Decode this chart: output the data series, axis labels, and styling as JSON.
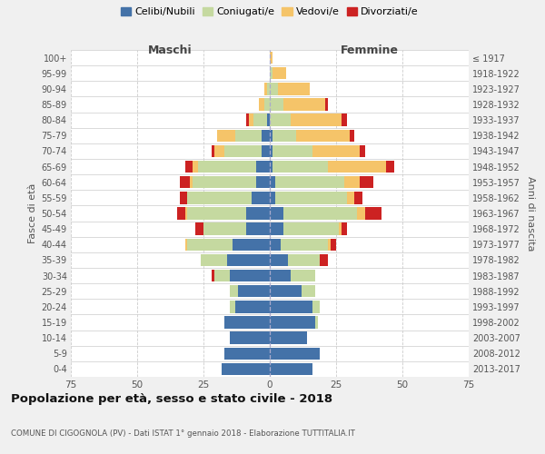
{
  "age_groups": [
    "0-4",
    "5-9",
    "10-14",
    "15-19",
    "20-24",
    "25-29",
    "30-34",
    "35-39",
    "40-44",
    "45-49",
    "50-54",
    "55-59",
    "60-64",
    "65-69",
    "70-74",
    "75-79",
    "80-84",
    "85-89",
    "90-94",
    "95-99",
    "100+"
  ],
  "birth_years": [
    "2013-2017",
    "2008-2012",
    "2003-2007",
    "1998-2002",
    "1993-1997",
    "1988-1992",
    "1983-1987",
    "1978-1982",
    "1973-1977",
    "1968-1972",
    "1963-1967",
    "1958-1962",
    "1953-1957",
    "1948-1952",
    "1943-1947",
    "1938-1942",
    "1933-1937",
    "1928-1932",
    "1923-1927",
    "1918-1922",
    "≤ 1917"
  ],
  "maschi": {
    "celibi": [
      18,
      17,
      15,
      17,
      13,
      12,
      15,
      16,
      14,
      9,
      9,
      7,
      5,
      5,
      3,
      3,
      1,
      0,
      0,
      0,
      0
    ],
    "coniugati": [
      0,
      0,
      0,
      0,
      2,
      3,
      6,
      10,
      17,
      16,
      22,
      24,
      24,
      22,
      14,
      10,
      5,
      2,
      1,
      0,
      0
    ],
    "vedovi": [
      0,
      0,
      0,
      0,
      0,
      0,
      0,
      0,
      1,
      0,
      1,
      0,
      1,
      2,
      4,
      7,
      2,
      2,
      1,
      0,
      0
    ],
    "divorziati": [
      0,
      0,
      0,
      0,
      0,
      0,
      1,
      0,
      0,
      3,
      3,
      3,
      4,
      3,
      1,
      0,
      1,
      0,
      0,
      0,
      0
    ]
  },
  "femmine": {
    "nubili": [
      16,
      19,
      14,
      17,
      16,
      12,
      8,
      7,
      4,
      5,
      5,
      2,
      2,
      1,
      1,
      1,
      0,
      0,
      0,
      0,
      0
    ],
    "coniugate": [
      0,
      0,
      0,
      1,
      3,
      5,
      9,
      12,
      18,
      21,
      28,
      27,
      26,
      21,
      15,
      9,
      8,
      5,
      3,
      1,
      0
    ],
    "vedove": [
      0,
      0,
      0,
      0,
      0,
      0,
      0,
      0,
      1,
      1,
      3,
      3,
      6,
      22,
      18,
      20,
      19,
      16,
      12,
      5,
      1
    ],
    "divorziate": [
      0,
      0,
      0,
      0,
      0,
      0,
      0,
      3,
      2,
      2,
      6,
      3,
      5,
      3,
      2,
      2,
      2,
      1,
      0,
      0,
      0
    ]
  },
  "colors": {
    "celibi_nubili": "#4472a8",
    "coniugati_e": "#c5d9a0",
    "vedovi_e": "#f5c469",
    "divorziati_e": "#cc2222"
  },
  "xlim": 75,
  "title": "Popolazione per età, sesso e stato civile - 2018",
  "subtitle": "COMUNE DI CIGOGNOLA (PV) - Dati ISTAT 1° gennaio 2018 - Elaborazione TUTTITALIA.IT",
  "ylabel": "Fasce di età",
  "ylabel_right": "Anni di nascita",
  "bg_color": "#f0f0f0",
  "plot_bg_color": "#ffffff",
  "grid_color": "#cccccc"
}
